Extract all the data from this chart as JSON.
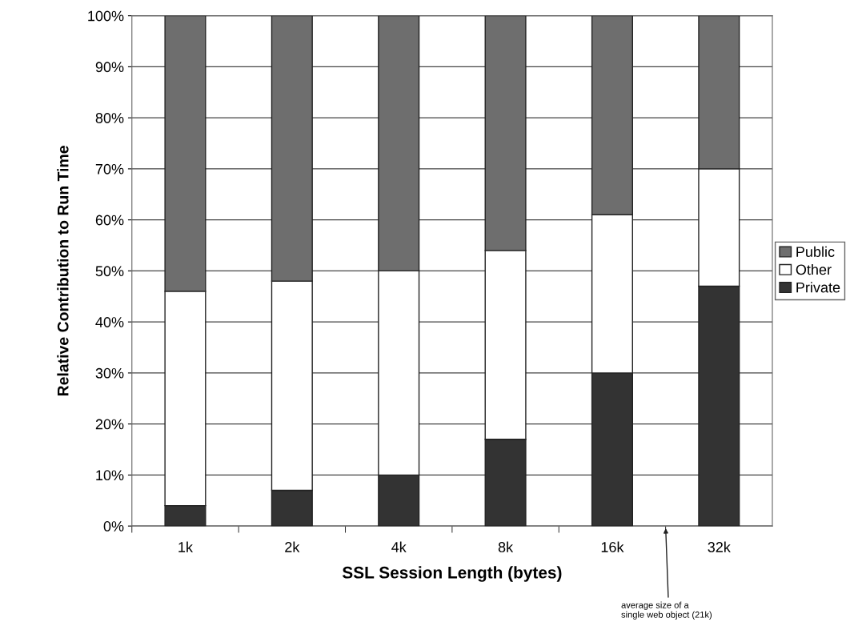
{
  "chart_data": {
    "type": "bar",
    "stacked": true,
    "xlabel": "SSL Session Length (bytes)",
    "ylabel": "Relative Contribution to Run Time",
    "categories": [
      "1k",
      "2k",
      "4k",
      "8k",
      "16k",
      "32k"
    ],
    "series": [
      {
        "name": "Private",
        "color": "#333333",
        "values": [
          4,
          7,
          10,
          17,
          30,
          47
        ]
      },
      {
        "name": "Other",
        "color": "#ffffff",
        "values": [
          42,
          41,
          40,
          37,
          31,
          23
        ]
      },
      {
        "name": "Public",
        "color": "#6e6e6e",
        "values": [
          54,
          52,
          50,
          46,
          39,
          30
        ]
      }
    ],
    "ylim": [
      0,
      100
    ],
    "yticks": [
      {
        "value": 0,
        "label": "0%"
      },
      {
        "value": 10,
        "label": "10%"
      },
      {
        "value": 20,
        "label": "20%"
      },
      {
        "value": 30,
        "label": "30%"
      },
      {
        "value": 40,
        "label": "40%"
      },
      {
        "value": 50,
        "label": "50%"
      },
      {
        "value": 60,
        "label": "60%"
      },
      {
        "value": 70,
        "label": "70%"
      },
      {
        "value": 80,
        "label": "80%"
      },
      {
        "value": 90,
        "label": "90%"
      },
      {
        "value": 100,
        "label": "100%"
      }
    ],
    "grid": "y",
    "legend": "right",
    "annotations": [
      "average size of a\nsingle web object (21k)"
    ]
  }
}
